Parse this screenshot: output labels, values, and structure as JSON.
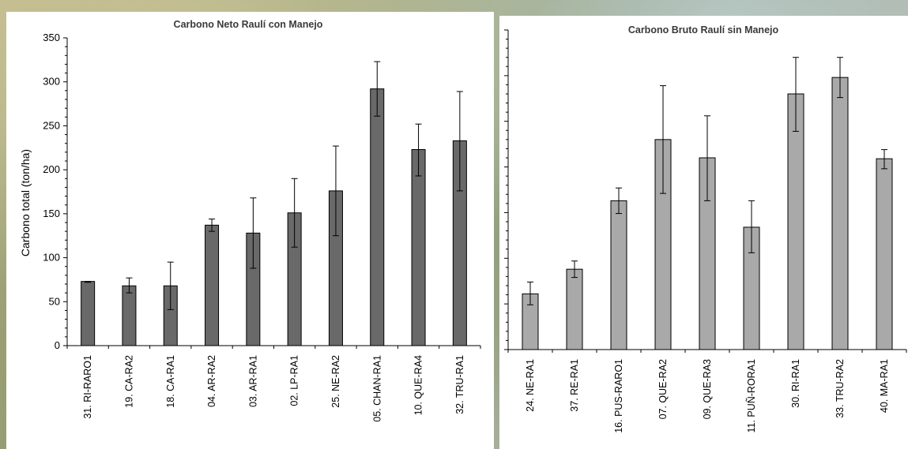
{
  "chart_data": [
    {
      "type": "bar",
      "title": "Carbono Neto Raulí con Manejo",
      "ylabel": "Carbono total (ton/ha)",
      "xlabel": "",
      "ylim": [
        0,
        350
      ],
      "yticks": [
        0,
        50,
        100,
        150,
        200,
        250,
        300,
        350
      ],
      "bar_color": "#696969",
      "categories": [
        "31. RI-RARO1",
        "19. CA-RA2",
        "18. CA-RA1",
        "04. AR-RA2",
        "03. AR-RA1",
        "02. LP-RA1",
        "25. NE-RA2",
        "05. CHAN-RA1",
        "10. QUE-RA4",
        "32. TRU-RA1"
      ],
      "values": [
        73,
        68,
        68,
        137,
        128,
        151,
        176,
        292,
        223,
        233
      ],
      "error_low": [
        72,
        60,
        41,
        130,
        88,
        112,
        125,
        261,
        193,
        176
      ],
      "error_high": [
        73,
        77,
        95,
        144,
        168,
        190,
        227,
        323,
        252,
        289
      ],
      "grid": false
    },
    {
      "type": "bar",
      "title": "Carbono Bruto Raulí sin Manejo",
      "xlabel": "",
      "ylabel": "",
      "ylim": [
        0,
        350
      ],
      "bar_color": "#a9a9a9",
      "categories": [
        "24. NE-RA1",
        "37. RE-RA1",
        "16. PUS-RARO1",
        "07. QUE-RA2",
        "09. QUE-RA3",
        "11. PUÑ-RORA1",
        "30. RI-RA1",
        "33. TRU-RA2",
        "40. MA-RA1"
      ],
      "values": [
        61,
        88,
        163,
        230,
        210,
        134,
        280,
        298,
        209
      ],
      "error_low": [
        49,
        79,
        149,
        171,
        163,
        106,
        239,
        276,
        198
      ],
      "error_high": [
        74,
        97,
        177,
        289,
        256,
        163,
        320,
        320,
        219
      ],
      "grid": false
    }
  ]
}
